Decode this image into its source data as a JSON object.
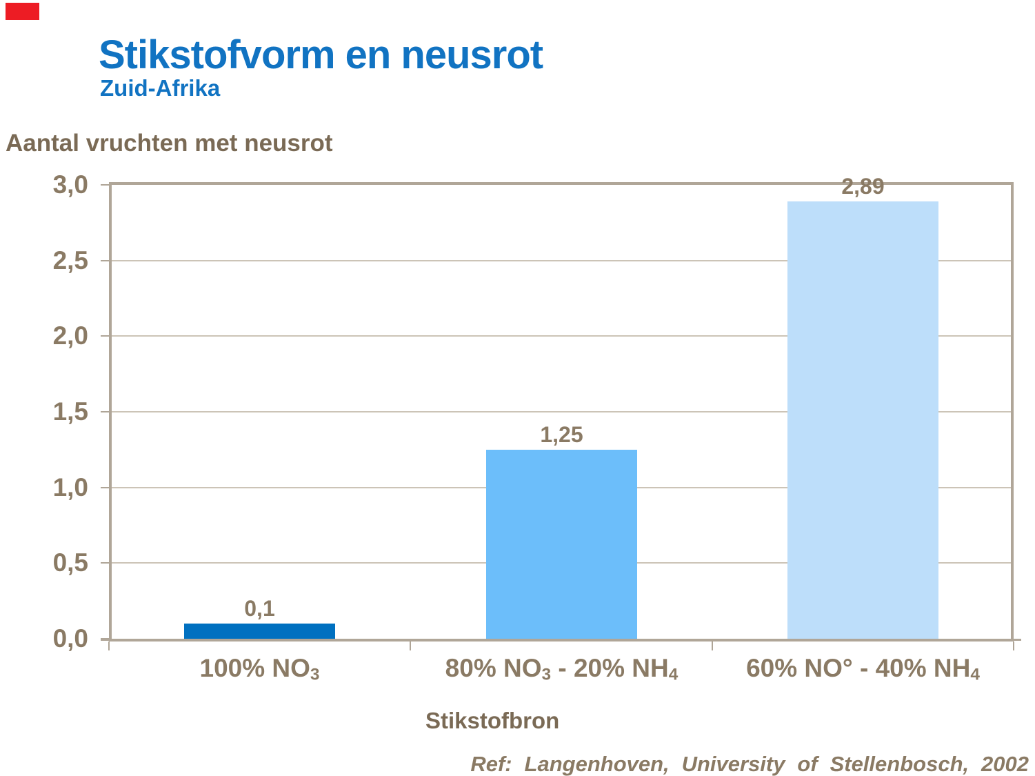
{
  "header": {
    "title": "Stikstofvorm en neusrot",
    "subtitle": "Zuid-Afrika"
  },
  "chart_data": {
    "type": "bar",
    "title": "Stikstofvorm en neusrot",
    "subtitle": "Zuid-Afrika",
    "value_axis_title": "Aantal vruchten met neusrot",
    "xlabel": "Stikstofbron",
    "ylabel": "Aantal vruchten met neusrot",
    "categories": [
      "100% NO₃",
      "80% NO₃ - 20% NH₄",
      "60% NO° - 40% NH₄"
    ],
    "category_parts": [
      [
        {
          "t": "100% NO"
        },
        {
          "t": "3",
          "sub": true
        }
      ],
      [
        {
          "t": "80% NO"
        },
        {
          "t": "3",
          "sub": true
        },
        {
          "t": " - 20% NH"
        },
        {
          "t": "4",
          "sub": true
        }
      ],
      [
        {
          "t": "60% NO° - 40% NH"
        },
        {
          "t": "4",
          "sub": true
        }
      ]
    ],
    "values": [
      0.1,
      1.25,
      2.89
    ],
    "value_labels": [
      "0,1",
      "1,25",
      "2,89"
    ],
    "bar_colors": [
      "#0070C0",
      "#6CBEFA",
      "#BDDEFA"
    ],
    "ylim": [
      0,
      3
    ],
    "ytick_step": 0.5,
    "ytick_labels": [
      "0,0",
      "0,5",
      "1,0",
      "1,5",
      "2,0",
      "2,5",
      "3,0"
    ],
    "grid": true,
    "legend": "none",
    "decimal_separator": ","
  },
  "footer": {
    "reference": "Ref: Langenhoven, University of Stellenbosch, 2002"
  },
  "colors": {
    "title_blue": "#1173C2",
    "text_brown_dark": "#7A6A55",
    "text_brown": "#8A7A64",
    "frame": "#B0A698",
    "gridline": "#CCC4B7",
    "red_marker": "#ED1C24",
    "bar_1": "#0070C0",
    "bar_2": "#6CBEFA",
    "bar_3": "#BDDEFA",
    "background": "#FFFFFF"
  }
}
